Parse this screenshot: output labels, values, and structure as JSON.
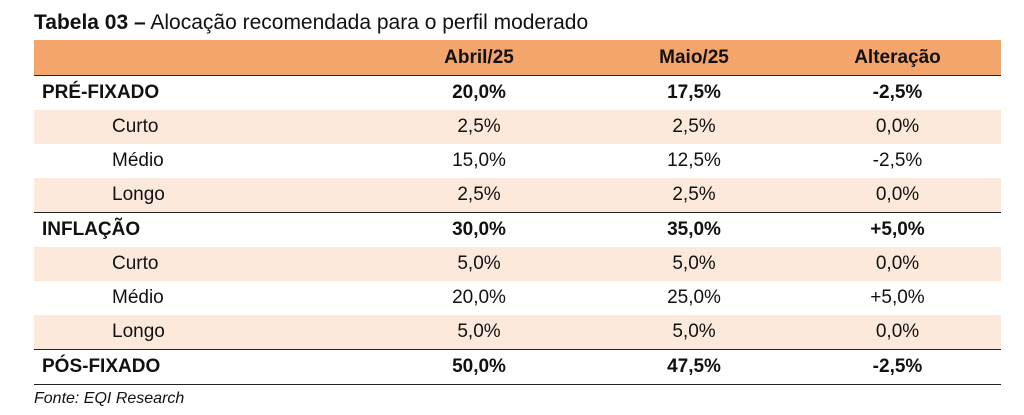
{
  "title": {
    "bold": "Tabela 03 –",
    "text": " Alocação recomendada para o perfil moderado"
  },
  "columns": [
    "",
    "Abril/25",
    "Maio/25",
    "Alteração"
  ],
  "rows": [
    {
      "label": "PRÉ-FIXADO",
      "abril": "20,0%",
      "maio": "17,5%",
      "alteracao": "-2,5%"
    },
    {
      "label": "Curto",
      "abril": "2,5%",
      "maio": "2,5%",
      "alteracao": "0,0%"
    },
    {
      "label": "Médio",
      "abril": "15,0%",
      "maio": "12,5%",
      "alteracao": "-2,5%"
    },
    {
      "label": "Longo",
      "abril": "2,5%",
      "maio": "2,5%",
      "alteracao": "0,0%"
    },
    {
      "label": "INFLAÇÃO",
      "abril": "30,0%",
      "maio": "35,0%",
      "alteracao": "+5,0%"
    },
    {
      "label": "Curto",
      "abril": "5,0%",
      "maio": "5,0%",
      "alteracao": "0,0%"
    },
    {
      "label": "Médio",
      "abril": "20,0%",
      "maio": "25,0%",
      "alteracao": "+5,0%"
    },
    {
      "label": "Longo",
      "abril": "5,0%",
      "maio": "5,0%",
      "alteracao": "0,0%"
    },
    {
      "label": "PÓS-FIXADO",
      "abril": "50,0%",
      "maio": "47,5%",
      "alteracao": "-2,5%"
    }
  ],
  "source": "Fonte: EQI Research",
  "colors": {
    "header": "#f4a56b",
    "shade": "#fce9dc"
  }
}
